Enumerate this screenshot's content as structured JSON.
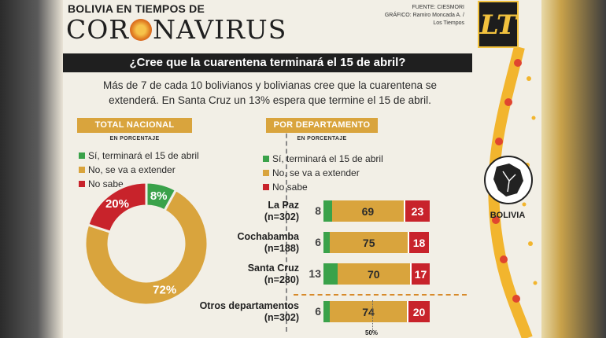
{
  "header": {
    "kicker": "BOLIVIA EN TIEMPOS DE",
    "brand_before": "COR",
    "brand_after": "NAVIRUS",
    "source_line": "FUENTE: CIESMORI",
    "graphic_line": "GRÁFICO: Ramiro Moncada A. / Los Tiempos",
    "logo": "LT"
  },
  "question": "¿Cree que la cuarentena terminará el 15 de abril?",
  "intro": "Más de 7 de cada 10 bolivianos y bolivianas cree que la cuarentena se extenderá. En Santa Cruz un 13% espera que termine el 15 de abril.",
  "colors": {
    "yes": "#3aa24a",
    "no": "#d9a43d",
    "not_sure": "#c8232b",
    "header_bg": "#1f1f1f",
    "section_bg": "#d9a43d"
  },
  "legend": {
    "yes": "Sí, terminará el 15 de abril",
    "no": "No, se va a extender",
    "not_sure": "No sabe"
  },
  "map_label": "BOLIVIA",
  "mid_marker": "50%",
  "chart_data": [
    {
      "type": "pie",
      "title": "TOTAL NACIONAL",
      "subtitle": "EN PORCENTAJE",
      "donut": true,
      "slices": [
        {
          "key": "yes",
          "value": 8,
          "label": "8%"
        },
        {
          "key": "no",
          "value": 72,
          "label": "72%"
        },
        {
          "key": "not_sure",
          "value": 20,
          "label": "20%"
        }
      ]
    },
    {
      "type": "bar",
      "orientation": "horizontal",
      "stacked": true,
      "title": "POR DEPARTAMENTO",
      "subtitle": "EN PORCENTAJE",
      "categories": [
        {
          "name": "La Paz",
          "n": "(n=302)"
        },
        {
          "name": "Cochabamba",
          "n": "(n=188)"
        },
        {
          "name": "Santa Cruz",
          "n": "(n=280)"
        },
        {
          "name": "Otros departamentos",
          "n": "(n=302)"
        }
      ],
      "series": [
        {
          "key": "yes",
          "values": [
            8,
            6,
            13,
            6
          ]
        },
        {
          "key": "no",
          "values": [
            69,
            75,
            70,
            74
          ]
        },
        {
          "key": "not_sure",
          "values": [
            23,
            18,
            17,
            20
          ]
        }
      ],
      "xlim": [
        0,
        100
      ]
    }
  ]
}
